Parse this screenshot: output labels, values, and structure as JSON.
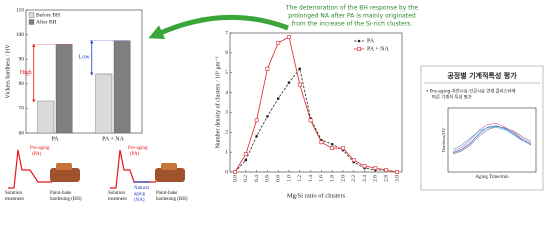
{
  "chart_data": [
    {
      "type": "bar",
      "ylabel": "Vickers hardness / HV",
      "categories": [
        "PA",
        "PA + NA"
      ],
      "series": [
        {
          "name": "Before BH",
          "color": "#d4d4d4",
          "values": [
            73,
            84
          ]
        },
        {
          "name": "After BH",
          "color": "#7f7f7f",
          "values": [
            96,
            97.5
          ]
        }
      ],
      "ylim": [
        60,
        110
      ],
      "yticks": [
        60,
        70,
        80,
        90,
        100,
        110
      ],
      "legend": "upper-left",
      "annotations": [
        {
          "text": "High",
          "color": "#e8141a"
        },
        {
          "text": "Low",
          "color": "#1d3fc4"
        }
      ]
    },
    {
      "type": "line",
      "xlabel": "Mg/Si ratio of clusters",
      "ylabel": "Number density of clusters / 10³ μm⁻³",
      "categories": [
        "0.0",
        "0.2",
        "0.4",
        "0.6",
        "0.8",
        "1.0",
        "1.2",
        "1.4",
        "1.6",
        "1.8",
        "2.0",
        "2.2",
        "2.4",
        "2.6",
        "2.8",
        "3.0"
      ],
      "series": [
        {
          "name": "PA",
          "color": "#222222",
          "marker": "circle",
          "dashed": true,
          "values": [
            0,
            0.6,
            1.8,
            2.8,
            3.7,
            4.5,
            5.2,
            2.7,
            1.6,
            1.4,
            1.1,
            0.5,
            0.2,
            0.1,
            0.1,
            0
          ]
        },
        {
          "name": "PA + NA",
          "color": "#d9262c",
          "marker": "square",
          "dashed": false,
          "values": [
            0,
            0.9,
            2.6,
            5.2,
            6.5,
            6.8,
            4.4,
            2.6,
            1.5,
            1.2,
            1.2,
            0.6,
            0.3,
            0.2,
            0.1,
            0
          ]
        }
      ],
      "ylim": [
        0,
        7
      ],
      "yticks": [
        0,
        1,
        2,
        3,
        4,
        5,
        6,
        7
      ],
      "legend": "upper-right"
    },
    {
      "type": "line",
      "xlabel": "Aging Time/min",
      "ylabel": "Hardness/HV",
      "categories": [
        null,
        null,
        null,
        null,
        null,
        null,
        null,
        null,
        null,
        null
      ],
      "series": [
        {
          "color": "#2e5fd8",
          "values": [
            3,
            3.5,
            4.5,
            6,
            7,
            7.2,
            6.8,
            6,
            5,
            4.2
          ]
        },
        {
          "color": "#e07aa8",
          "values": [
            3.2,
            3.8,
            5,
            6.5,
            7.4,
            7.6,
            7,
            6.2,
            5.2,
            4.4
          ]
        },
        {
          "color": "#46b8e0",
          "values": [
            3.5,
            4.2,
            5.3,
            6.4,
            6.9,
            7,
            6.6,
            5.8,
            4.9,
            4.6
          ]
        },
        {
          "color": "#888888",
          "values": [
            2.8,
            3.3,
            4.2,
            5.6,
            6.6,
            7.1,
            6.9,
            6.4,
            5.5,
            4.8
          ]
        }
      ],
      "ylim": [
        0,
        10
      ]
    }
  ],
  "callout": {
    "lines": [
      "The deterioration of the BH response by the",
      "prolonged NA after PA is mainly originated",
      "from the increase of the Si-rich clusters."
    ]
  },
  "diagrams": [
    {
      "aging": [
        "Pre-aging",
        "(PA)"
      ],
      "solution": [
        "Solution",
        "treatment"
      ],
      "bake": [
        "Paint-bake",
        "hardening (BH)"
      ]
    },
    {
      "aging": [
        "Pre-aging",
        "(PA)"
      ],
      "natural": [
        "Natural",
        "aging",
        "(NA)"
      ],
      "solution": [
        "Solution",
        "treatment"
      ],
      "bake": [
        "Paint-bake",
        "hardening (BH)"
      ]
    }
  ],
  "panel": {
    "title": "공정별 기계적특성 평가",
    "bullet": [
      "• Pre-aging-자연시효-인공시효 연계 클러스터에",
      "따른 기계적 특성 평가"
    ]
  }
}
